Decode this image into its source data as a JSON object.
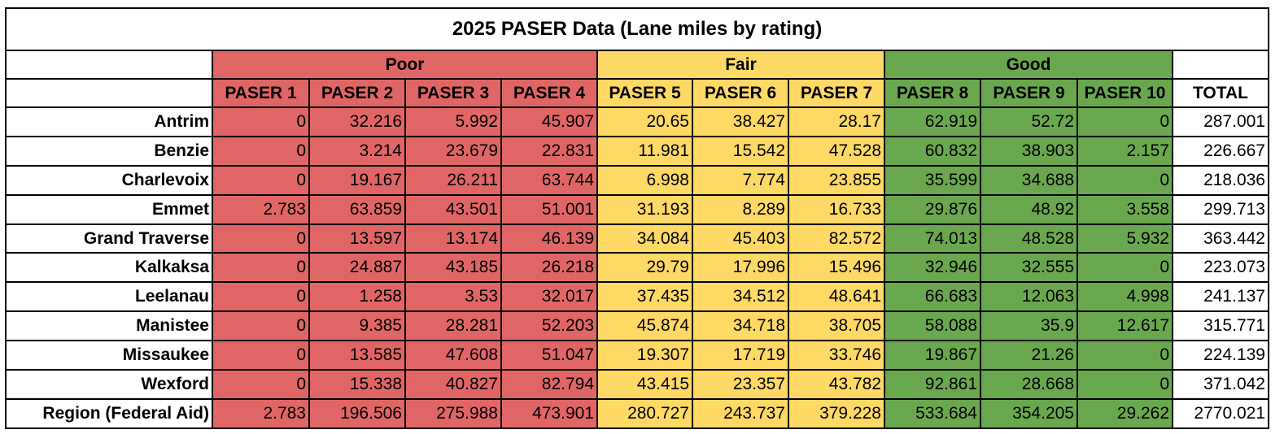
{
  "title": "2025 PASER Data (Lane miles by rating)",
  "groups": {
    "poor": "Poor",
    "fair": "Fair",
    "good": "Good"
  },
  "colors": {
    "poor": "#e06666",
    "fair": "#ffd966",
    "good": "#6aa84f"
  },
  "headers": [
    "PASER 1",
    "PASER 2",
    "PASER 3",
    "PASER 4",
    "PASER 5",
    "PASER 6",
    "PASER 7",
    "PASER 8",
    "PASER 9",
    "PASER 10",
    "TOTAL"
  ],
  "rows": [
    {
      "name": "Antrim",
      "values": [
        "0",
        "32.216",
        "5.992",
        "45.907",
        "20.65",
        "38.427",
        "28.17",
        "62.919",
        "52.72",
        "0",
        "287.001"
      ]
    },
    {
      "name": "Benzie",
      "values": [
        "0",
        "3.214",
        "23.679",
        "22.831",
        "11.981",
        "15.542",
        "47.528",
        "60.832",
        "38.903",
        "2.157",
        "226.667"
      ]
    },
    {
      "name": "Charlevoix",
      "values": [
        "0",
        "19.167",
        "26.211",
        "63.744",
        "6.998",
        "7.774",
        "23.855",
        "35.599",
        "34.688",
        "0",
        "218.036"
      ]
    },
    {
      "name": "Emmet",
      "values": [
        "2.783",
        "63.859",
        "43.501",
        "51.001",
        "31.193",
        "8.289",
        "16.733",
        "29.876",
        "48.92",
        "3.558",
        "299.713"
      ]
    },
    {
      "name": "Grand Traverse",
      "values": [
        "0",
        "13.597",
        "13.174",
        "46.139",
        "34.084",
        "45.403",
        "82.572",
        "74.013",
        "48.528",
        "5.932",
        "363.442"
      ]
    },
    {
      "name": "Kalkaksa",
      "values": [
        "0",
        "24.887",
        "43.185",
        "26.218",
        "29.79",
        "17.996",
        "15.496",
        "32.946",
        "32.555",
        "0",
        "223.073"
      ]
    },
    {
      "name": "Leelanau",
      "values": [
        "0",
        "1.258",
        "3.53",
        "32.017",
        "37.435",
        "34.512",
        "48.641",
        "66.683",
        "12.063",
        "4.998",
        "241.137"
      ]
    },
    {
      "name": "Manistee",
      "values": [
        "0",
        "9.385",
        "28.281",
        "52.203",
        "45.874",
        "34.718",
        "38.705",
        "58.088",
        "35.9",
        "12.617",
        "315.771"
      ]
    },
    {
      "name": "Missaukee",
      "values": [
        "0",
        "13.585",
        "47.608",
        "51.047",
        "19.307",
        "17.719",
        "33.746",
        "19.867",
        "21.26",
        "0",
        "224.139"
      ]
    },
    {
      "name": "Wexford",
      "values": [
        "0",
        "15.338",
        "40.827",
        "82.794",
        "43.415",
        "23.357",
        "43.782",
        "92.861",
        "28.668",
        "0",
        "371.042"
      ]
    },
    {
      "name": "Region (Federal Aid)",
      "values": [
        "2.783",
        "196.506",
        "275.988",
        "473.901",
        "280.727",
        "243.737",
        "379.228",
        "533.684",
        "354.205",
        "29.262",
        "2770.021"
      ]
    }
  ]
}
